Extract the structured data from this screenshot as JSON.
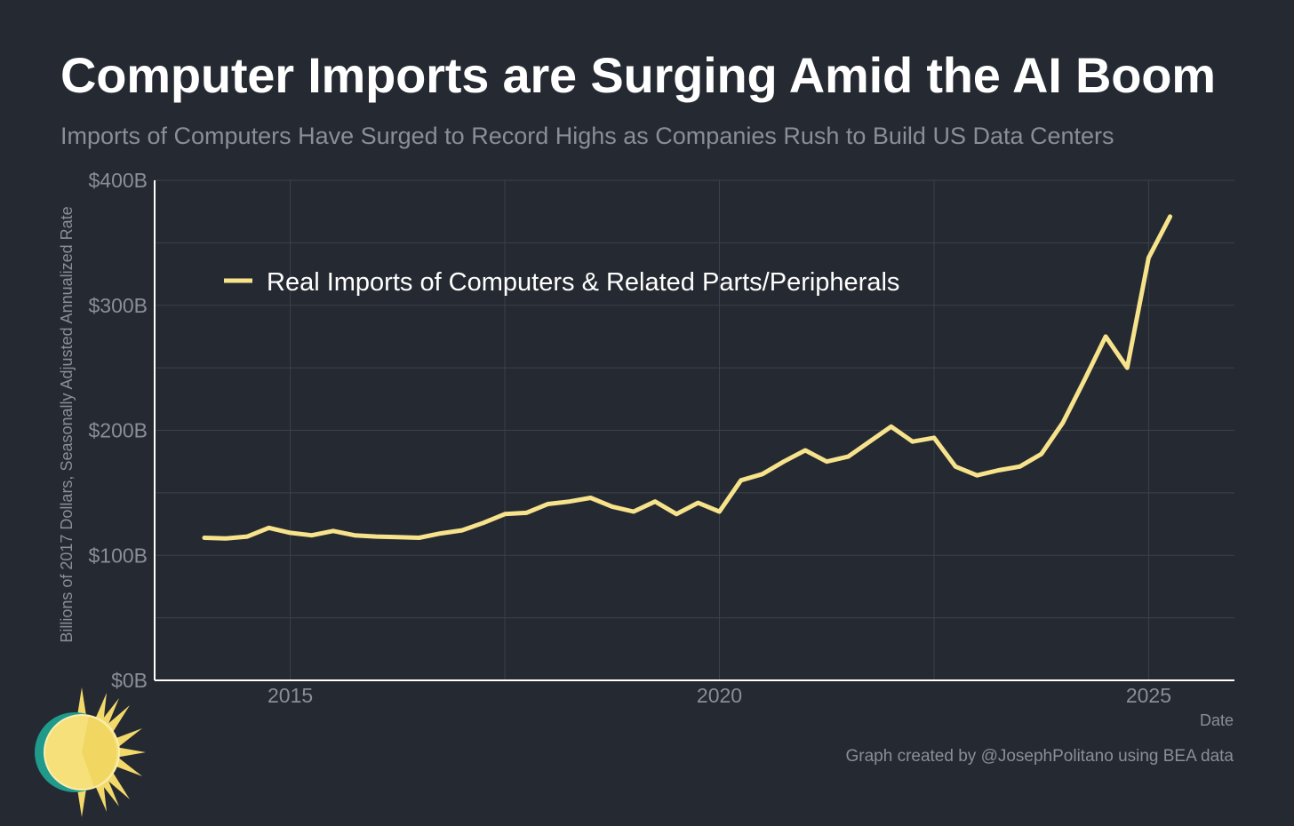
{
  "title": "Computer Imports are Surging Amid the AI Boom",
  "subtitle": "Imports of Computers Have Surged to Record Highs as Companies Rush to Build US Data Centers",
  "footer": "Graph created by @JosephPolitano using BEA data",
  "logo_icon": "sun-icon",
  "colors": {
    "background": "#252931",
    "line": "#f7e38b",
    "grid": "#3c414b",
    "text_muted": "#8a8e96",
    "axis": "#ffffff"
  },
  "chart_data": {
    "type": "line",
    "title": "Computer Imports are Surging Amid the AI Boom",
    "xlabel": "Date",
    "ylabel": "Billions of 2017 Dollars, Seasonally Adjusted Annualized Rate",
    "xlim": [
      2013.42,
      2026.0
    ],
    "ylim": [
      0,
      400
    ],
    "x_ticks": [
      2015,
      2020,
      2025
    ],
    "x_tick_labels": [
      "2015",
      "2020",
      "2025"
    ],
    "y_ticks": [
      0,
      100,
      200,
      300,
      400
    ],
    "y_tick_labels": [
      "$0B",
      "$100B",
      "$200B",
      "$300B",
      "$400B"
    ],
    "grid": true,
    "legend_position": "top-left",
    "series": [
      {
        "name": "Real Imports of Computers & Related Parts/Peripherals",
        "color": "#f7e38b",
        "x": [
          2014.0,
          2014.25,
          2014.5,
          2014.75,
          2015.0,
          2015.25,
          2015.5,
          2015.75,
          2016.0,
          2016.25,
          2016.5,
          2016.75,
          2017.0,
          2017.25,
          2017.5,
          2017.75,
          2018.0,
          2018.25,
          2018.5,
          2018.75,
          2019.0,
          2019.25,
          2019.5,
          2019.75,
          2020.0,
          2020.25,
          2020.5,
          2020.75,
          2021.0,
          2021.25,
          2021.5,
          2021.75,
          2022.0,
          2022.25,
          2022.5,
          2022.75,
          2023.0,
          2023.25,
          2023.5,
          2023.75,
          2024.0,
          2024.25,
          2024.5,
          2024.75,
          2025.0,
          2025.25
        ],
        "values": [
          114,
          113.5,
          115,
          122,
          118,
          116,
          119.5,
          116,
          115,
          114.5,
          114,
          117.5,
          120,
          126,
          133,
          134,
          141,
          143,
          146,
          139,
          135,
          143,
          133,
          142,
          135,
          160,
          165,
          175,
          184,
          175,
          179,
          191,
          203,
          191,
          194,
          171,
          164,
          168,
          171,
          181,
          206,
          240,
          275,
          250,
          338,
          371
        ]
      }
    ]
  }
}
